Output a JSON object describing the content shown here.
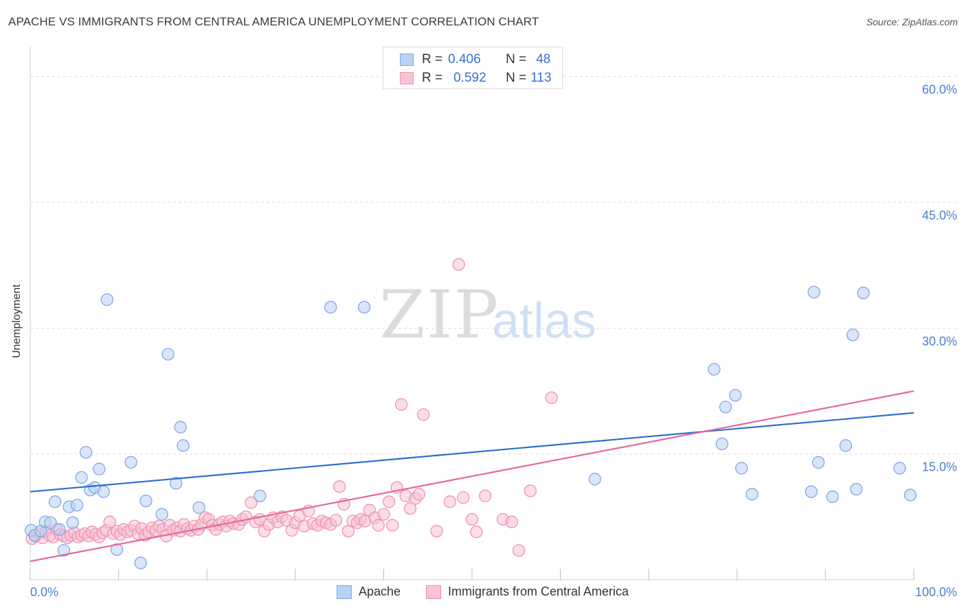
{
  "title": "APACHE VS IMMIGRANTS FROM CENTRAL AMERICA UNEMPLOYMENT CORRELATION CHART",
  "source": "Source: ZipAtlas.com",
  "watermark": {
    "zip": "ZIP",
    "atlas": "atlas"
  },
  "colors": {
    "apache_fill": "#b9d1f4",
    "apache_stroke": "#7fa7e3",
    "apache_line": "#2f6fd0",
    "immig_fill": "#f8c3d3",
    "immig_stroke": "#ee93b0",
    "immig_line": "#e5689a",
    "tick_label": "#4a7fd4",
    "grid": "#dddddd"
  },
  "stats": {
    "rows": [
      {
        "r_label": "R =",
        "r_value": "0.406",
        "n_label": "N =",
        "n_value": "48"
      },
      {
        "r_label": "R =",
        "r_value": "0.592",
        "n_label": "N =",
        "n_value": "113"
      }
    ]
  },
  "legend": {
    "apache": "Apache",
    "immigrants": "Immigrants from Central America"
  },
  "chart_data": {
    "type": "scatter",
    "title": "APACHE VS IMMIGRANTS FROM CENTRAL AMERICA UNEMPLOYMENT CORRELATION CHART",
    "xlabel": "",
    "ylabel": "Unemployment",
    "xlim": [
      0,
      100
    ],
    "ylim": [
      0,
      63
    ],
    "x_tick_labels": [
      "0.0%",
      "100.0%"
    ],
    "y_ticks": [
      15,
      30,
      45,
      60
    ],
    "y_tick_labels": [
      "15.0%",
      "30.0%",
      "45.0%",
      "60.0%"
    ],
    "grid": true,
    "legend_position": "bottom",
    "series": [
      {
        "name": "Apache",
        "r": 0.406,
        "n": 48,
        "trend": {
          "x": [
            0,
            100
          ],
          "y": [
            10.5,
            19.9
          ]
        },
        "points": [
          [
            0.1,
            5.9
          ],
          [
            0.5,
            5.3
          ],
          [
            1.2,
            5.8
          ],
          [
            1.7,
            6.9
          ],
          [
            2.3,
            6.8
          ],
          [
            2.8,
            9.3
          ],
          [
            3.3,
            6.0
          ],
          [
            3.8,
            3.5
          ],
          [
            4.4,
            8.7
          ],
          [
            4.8,
            6.8
          ],
          [
            5.3,
            8.9
          ],
          [
            5.8,
            12.2
          ],
          [
            6.3,
            15.2
          ],
          [
            6.8,
            10.7
          ],
          [
            7.3,
            11.0
          ],
          [
            7.8,
            13.2
          ],
          [
            8.3,
            10.5
          ],
          [
            8.7,
            33.4
          ],
          [
            9.8,
            3.6
          ],
          [
            11.4,
            14.0
          ],
          [
            12.5,
            2.0
          ],
          [
            13.1,
            9.4
          ],
          [
            14.9,
            7.8
          ],
          [
            15.6,
            26.9
          ],
          [
            16.5,
            11.5
          ],
          [
            17.0,
            18.2
          ],
          [
            17.3,
            16.0
          ],
          [
            19.1,
            8.6
          ],
          [
            26.0,
            10.0
          ],
          [
            34.0,
            32.5
          ],
          [
            37.8,
            32.5
          ],
          [
            63.9,
            12.0
          ],
          [
            77.4,
            25.1
          ],
          [
            78.3,
            16.2
          ],
          [
            78.7,
            20.6
          ],
          [
            79.8,
            22.0
          ],
          [
            80.5,
            13.3
          ],
          [
            81.7,
            10.2
          ],
          [
            88.4,
            10.5
          ],
          [
            88.7,
            34.3
          ],
          [
            89.2,
            14.0
          ],
          [
            90.8,
            9.9
          ],
          [
            92.3,
            16.0
          ],
          [
            93.1,
            29.2
          ],
          [
            93.5,
            10.8
          ],
          [
            94.3,
            34.2
          ],
          [
            98.4,
            13.3
          ],
          [
            99.6,
            10.1
          ]
        ]
      },
      {
        "name": "Immigrants from Central America",
        "r": 0.592,
        "n": 113,
        "trend": {
          "x": [
            0,
            100
          ],
          "y": [
            2.2,
            22.5
          ]
        },
        "points": [
          [
            0.2,
            4.9
          ],
          [
            0.6,
            5.2
          ],
          [
            1.0,
            5.5
          ],
          [
            1.4,
            5.0
          ],
          [
            1.8,
            5.8
          ],
          [
            2.2,
            5.3
          ],
          [
            2.6,
            5.1
          ],
          [
            3.0,
            6.0
          ],
          [
            3.4,
            5.4
          ],
          [
            3.8,
            5.2
          ],
          [
            4.2,
            5.0
          ],
          [
            4.6,
            5.3
          ],
          [
            5.0,
            5.6
          ],
          [
            5.4,
            5.1
          ],
          [
            5.8,
            5.3
          ],
          [
            6.2,
            5.5
          ],
          [
            6.6,
            5.2
          ],
          [
            7.0,
            5.7
          ],
          [
            7.4,
            5.4
          ],
          [
            7.8,
            5.1
          ],
          [
            8.2,
            5.6
          ],
          [
            8.6,
            5.9
          ],
          [
            9.0,
            6.9
          ],
          [
            9.4,
            5.5
          ],
          [
            9.8,
            5.8
          ],
          [
            10.2,
            5.4
          ],
          [
            10.6,
            6.0
          ],
          [
            11.0,
            5.7
          ],
          [
            11.4,
            5.9
          ],
          [
            11.8,
            6.4
          ],
          [
            12.2,
            5.5
          ],
          [
            12.6,
            6.1
          ],
          [
            13.0,
            5.3
          ],
          [
            13.4,
            5.7
          ],
          [
            13.8,
            6.2
          ],
          [
            14.2,
            5.9
          ],
          [
            14.6,
            6.4
          ],
          [
            15.0,
            6.0
          ],
          [
            15.4,
            5.2
          ],
          [
            15.8,
            6.5
          ],
          [
            16.2,
            5.9
          ],
          [
            16.6,
            6.2
          ],
          [
            17.0,
            5.8
          ],
          [
            17.4,
            6.6
          ],
          [
            17.8,
            6.1
          ],
          [
            18.2,
            5.9
          ],
          [
            18.6,
            6.4
          ],
          [
            19.0,
            6.0
          ],
          [
            19.4,
            6.6
          ],
          [
            19.8,
            7.4
          ],
          [
            20.2,
            7.2
          ],
          [
            20.6,
            6.5
          ],
          [
            21.0,
            6.0
          ],
          [
            21.4,
            6.6
          ],
          [
            21.8,
            6.9
          ],
          [
            22.2,
            6.4
          ],
          [
            22.6,
            7.0
          ],
          [
            23.0,
            6.7
          ],
          [
            23.6,
            6.6
          ],
          [
            24.0,
            7.2
          ],
          [
            24.4,
            7.5
          ],
          [
            25.0,
            9.2
          ],
          [
            25.5,
            6.9
          ],
          [
            26.0,
            7.2
          ],
          [
            26.5,
            5.8
          ],
          [
            27.0,
            6.6
          ],
          [
            27.5,
            7.4
          ],
          [
            28.0,
            6.9
          ],
          [
            28.5,
            7.5
          ],
          [
            29.0,
            7.1
          ],
          [
            29.6,
            5.9
          ],
          [
            30.0,
            6.8
          ],
          [
            30.5,
            7.6
          ],
          [
            31.0,
            6.4
          ],
          [
            31.5,
            8.2
          ],
          [
            32.0,
            6.7
          ],
          [
            32.5,
            6.5
          ],
          [
            33.0,
            7.0
          ],
          [
            33.5,
            6.8
          ],
          [
            34.0,
            6.6
          ],
          [
            34.6,
            7.1
          ],
          [
            35.0,
            11.1
          ],
          [
            35.5,
            9.0
          ],
          [
            36.0,
            5.8
          ],
          [
            36.5,
            7.0
          ],
          [
            37.0,
            6.8
          ],
          [
            37.4,
            7.2
          ],
          [
            37.9,
            7.0
          ],
          [
            38.4,
            8.3
          ],
          [
            39.0,
            7.4
          ],
          [
            39.4,
            6.5
          ],
          [
            40.0,
            7.8
          ],
          [
            40.6,
            9.3
          ],
          [
            41.0,
            6.5
          ],
          [
            41.5,
            11.0
          ],
          [
            42.0,
            20.9
          ],
          [
            42.5,
            10.0
          ],
          [
            43.0,
            8.5
          ],
          [
            43.6,
            9.7
          ],
          [
            44.0,
            10.2
          ],
          [
            44.5,
            19.7
          ],
          [
            46.0,
            5.8
          ],
          [
            47.5,
            9.3
          ],
          [
            48.5,
            37.6
          ],
          [
            49.0,
            9.8
          ],
          [
            50.0,
            7.2
          ],
          [
            50.5,
            5.7
          ],
          [
            51.5,
            10.0
          ],
          [
            53.5,
            7.2
          ],
          [
            54.5,
            6.9
          ],
          [
            55.3,
            3.5
          ],
          [
            56.6,
            10.6
          ],
          [
            59.0,
            21.7
          ]
        ]
      }
    ]
  }
}
